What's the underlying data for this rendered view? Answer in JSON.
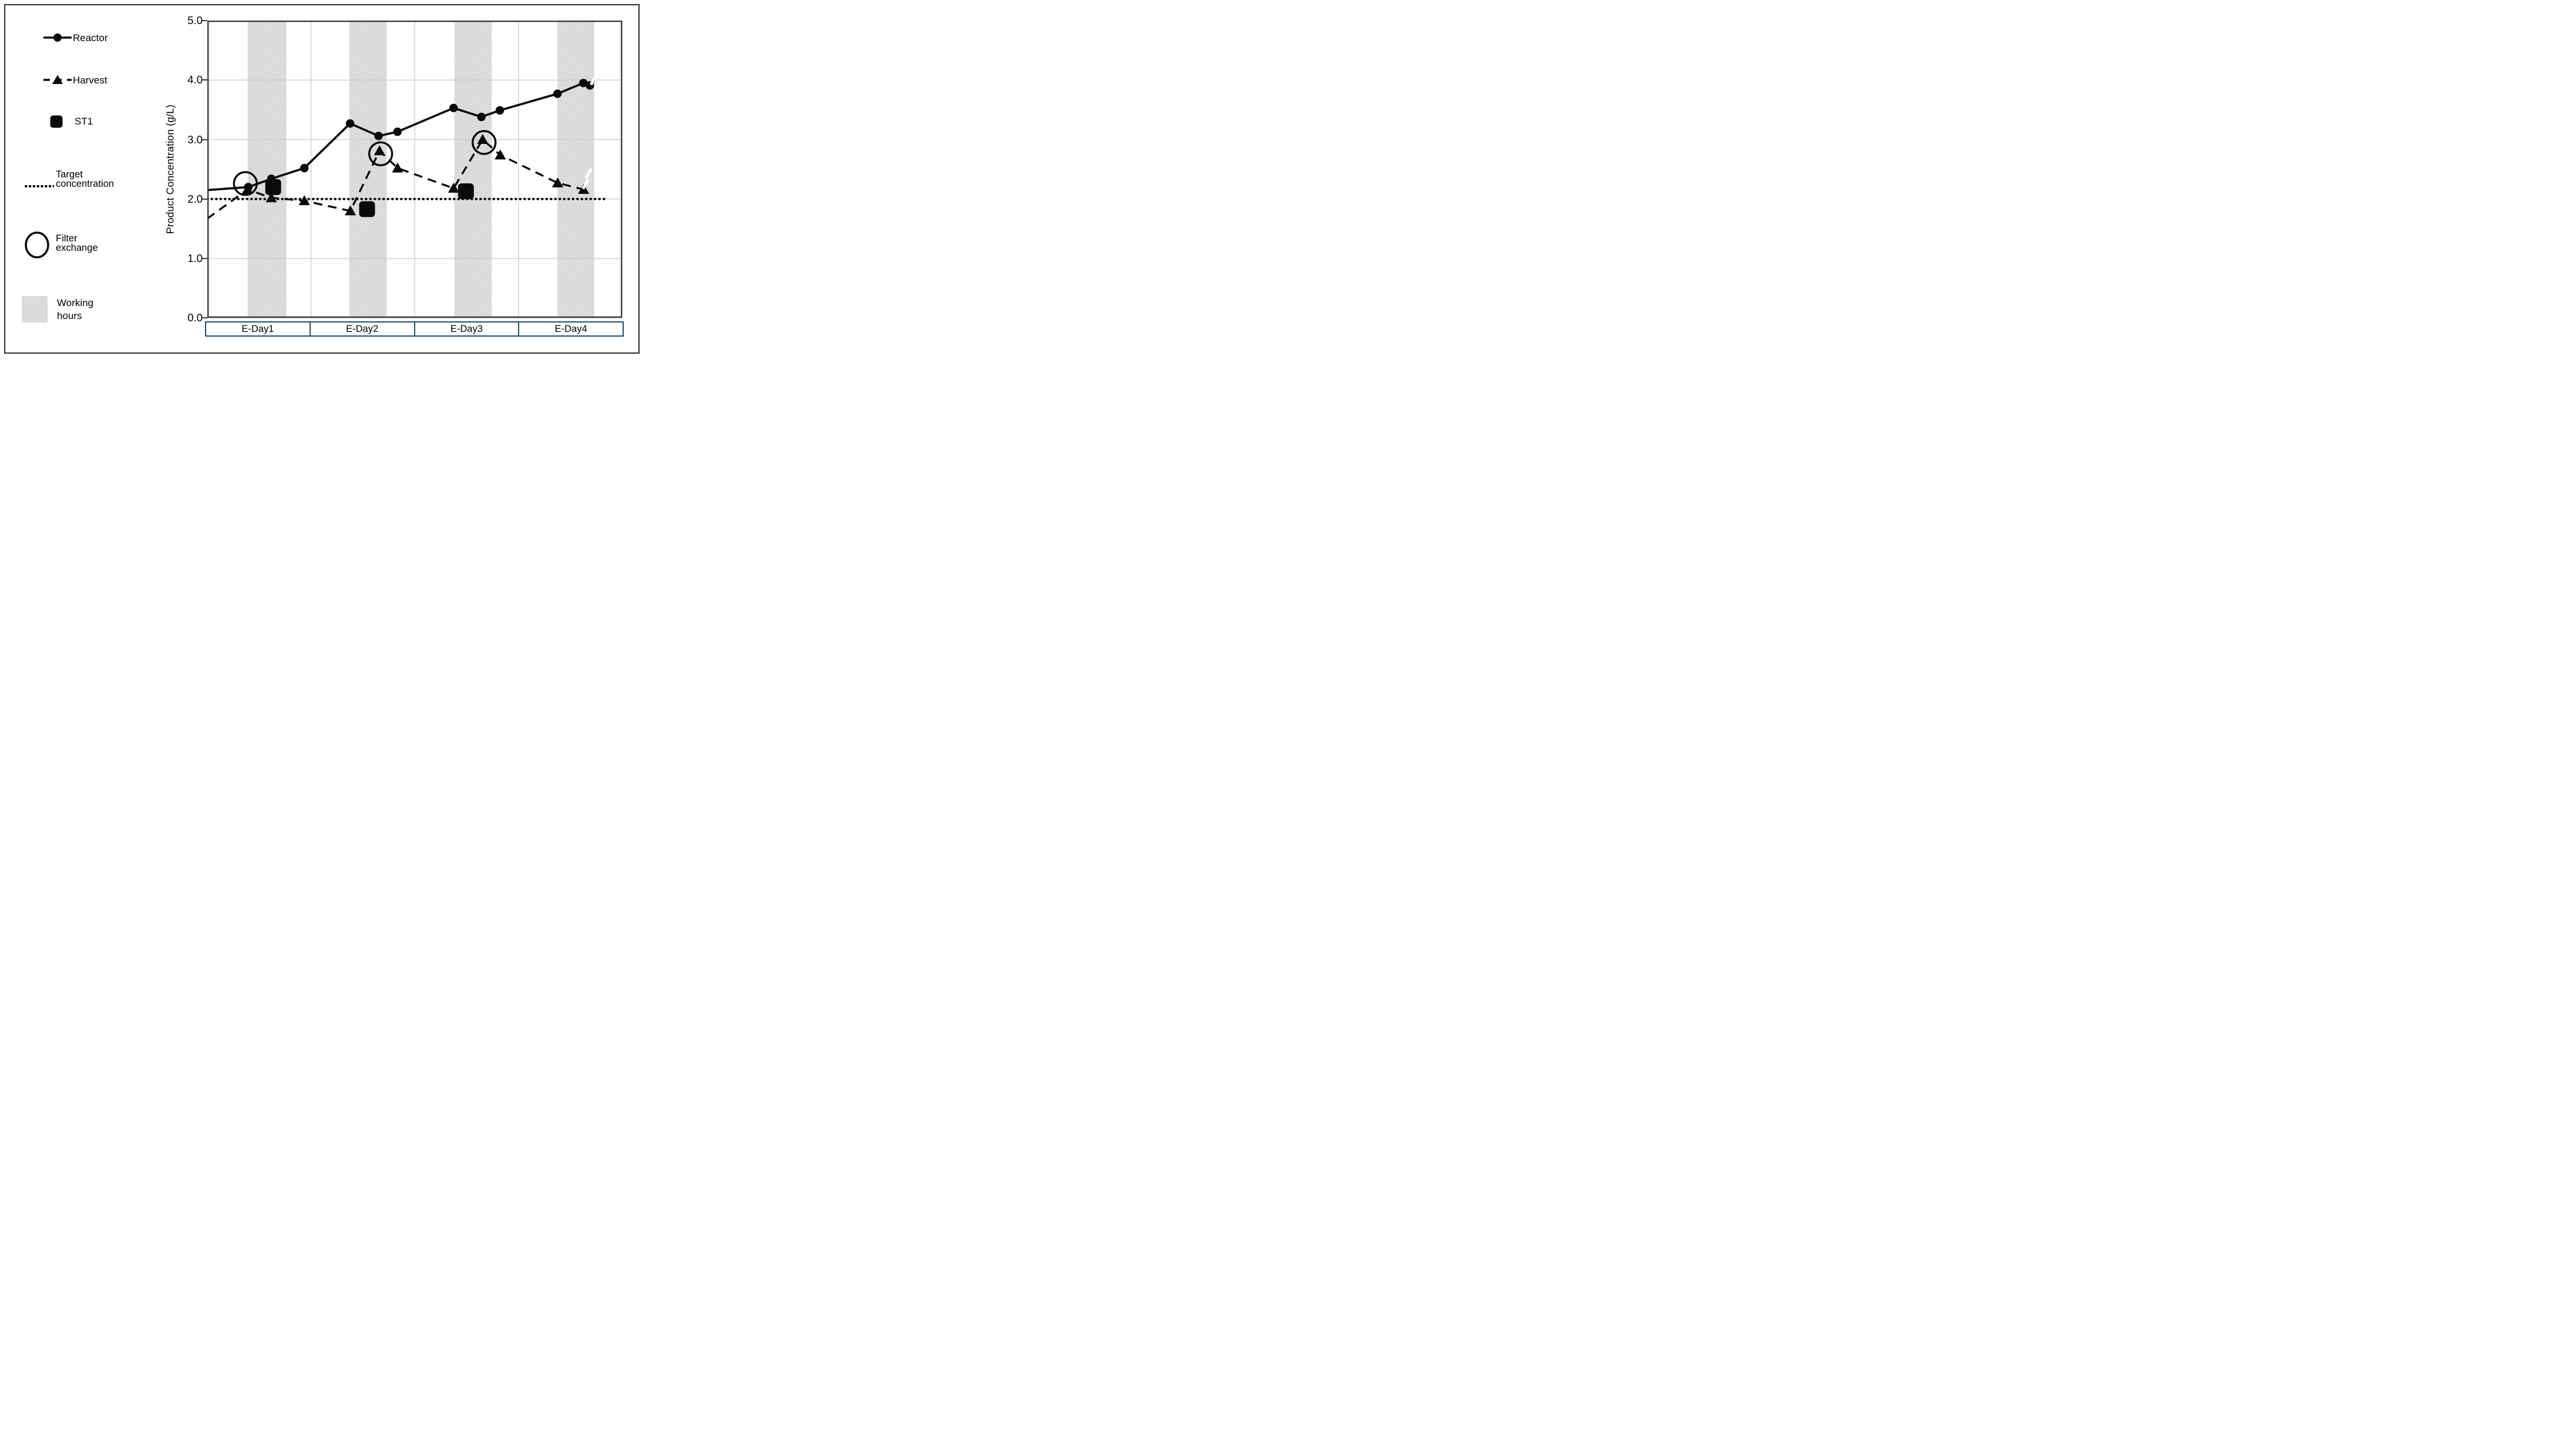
{
  "figure": {
    "background": "#ffffff",
    "border_color": "#2e2e2e"
  },
  "legend": {
    "items": [
      {
        "id": "reactor",
        "label": "Reactor",
        "marker": "solid-line-circle"
      },
      {
        "id": "harvest",
        "label": "Harvest",
        "marker": "dashed-line-triangle"
      },
      {
        "id": "st1",
        "label": "ST1",
        "marker": "filled-square"
      },
      {
        "id": "target",
        "label": "Target concentration",
        "label_lines": [
          "Target",
          "concentration"
        ],
        "marker": "dotted-line"
      },
      {
        "id": "filter",
        "label": "Filter exchange",
        "label_lines": [
          "Filter",
          "exchange"
        ],
        "marker": "open-circle"
      },
      {
        "id": "working",
        "label": "Working hours",
        "label_lines": [
          "Working",
          "hours"
        ],
        "marker": "shaded-square"
      }
    ]
  },
  "chart_data": {
    "type": "line",
    "title": "",
    "xlabel": "",
    "ylabel": "Product Concentration (g/L)",
    "ylim": [
      0.0,
      5.0
    ],
    "ytick_labels": [
      "0.0",
      "1.0",
      "2.0",
      "3.0",
      "4.0",
      "5.0"
    ],
    "grid": "light-gray horizontal at each tick and vertical at day boundaries",
    "legend_position": "left outside",
    "categories": [
      "E-Day1",
      "E-Day2",
      "E-Day3",
      "E-Day4"
    ],
    "x_units": "day index 0-4 along E-Day1..E-Day4",
    "series": [
      {
        "name": "Reactor",
        "style": "solid line, filled circle markers",
        "path": [
          [
            0.0,
            2.15
          ],
          [
            0.395,
            2.2
          ],
          [
            0.617,
            2.34
          ],
          [
            0.935,
            2.52
          ],
          [
            1.376,
            3.27
          ],
          [
            1.651,
            3.06
          ],
          [
            1.833,
            3.13
          ],
          [
            2.374,
            3.53
          ],
          [
            2.642,
            3.38
          ],
          [
            2.82,
            3.49
          ],
          [
            3.375,
            3.77
          ],
          [
            3.625,
            3.95
          ],
          [
            3.688,
            3.91
          ],
          [
            3.73,
            3.99
          ]
        ],
        "marker_start_index": 1,
        "marker_end_index": 12
      },
      {
        "name": "Harvest",
        "style": "dashed line, filled triangle markers",
        "path": [
          [
            0.0,
            1.67
          ],
          [
            0.387,
            2.16
          ],
          [
            0.617,
            2.02
          ],
          [
            0.935,
            1.97
          ],
          [
            1.379,
            1.8
          ],
          [
            1.66,
            2.81
          ],
          [
            1.834,
            2.52
          ],
          [
            2.374,
            2.18
          ],
          [
            2.654,
            3.0
          ],
          [
            2.824,
            2.74
          ],
          [
            3.377,
            2.27
          ],
          [
            3.627,
            2.16
          ]
        ],
        "marker_start_index": 1,
        "marker_end_index": 11
      },
      {
        "name": "ST1",
        "style": "large filled rounded squares, no line",
        "points": [
          [
            0.635,
            2.2
          ],
          [
            1.54,
            1.83
          ],
          [
            2.493,
            2.13
          ]
        ]
      }
    ],
    "target_concentration": {
      "value": 2.0,
      "x_start": 0.0,
      "x_end": 3.86,
      "style": "black dotted line"
    },
    "filter_exchange_circles": [
      {
        "x": 0.367,
        "y": 2.26
      },
      {
        "x": 1.671,
        "y": 2.76
      },
      {
        "x": 2.668,
        "y": 2.95
      }
    ],
    "working_hours_bands": [
      {
        "x_start": 0.389,
        "x_end": 0.762
      },
      {
        "x_start": 1.369,
        "x_end": 1.729
      },
      {
        "x_start": 2.382,
        "x_end": 2.741
      },
      {
        "x_start": 3.375,
        "x_end": 3.729
      }
    ],
    "white_slash_artifacts": [
      {
        "x": 3.723,
        "y": 4.0
      },
      {
        "x": 3.675,
        "y": 2.43
      },
      {
        "x": 3.646,
        "y": 2.25
      }
    ],
    "colors": {
      "series_black": "#0a0a0a",
      "grid": "#c9c9c9",
      "axis": "#3a3a3a",
      "day_box_border": "#1e5064",
      "band_dot": "#c9c9c9",
      "band_background": "#ededed"
    }
  }
}
